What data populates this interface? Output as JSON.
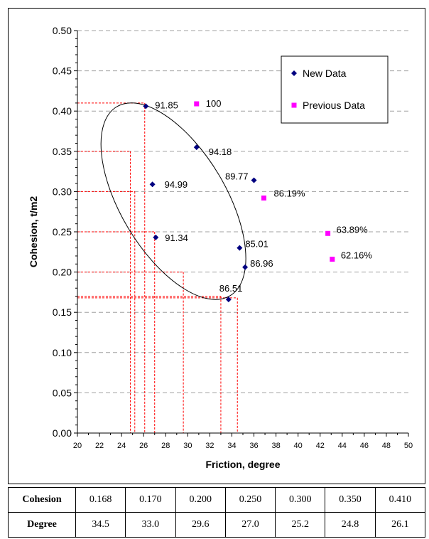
{
  "chart_data": {
    "type": "scatter",
    "xlabel": "Friction, degree",
    "ylabel": "Cohesion, t/m2",
    "xlim": [
      20,
      50
    ],
    "ylim": [
      0,
      0.5
    ],
    "x_ticks": [
      "20",
      "22",
      "24",
      "26",
      "28",
      "30",
      "32",
      "34",
      "36",
      "38",
      "40",
      "42",
      "44",
      "46",
      "48",
      "50"
    ],
    "y_ticks": [
      "0.00",
      "0.05",
      "0.10",
      "0.15",
      "0.20",
      "0.25",
      "0.30",
      "0.35",
      "0.40",
      "0.45",
      "0.50"
    ],
    "grid": "horizontal dashed",
    "legend_position": "top-right",
    "series": [
      {
        "name": "New Data",
        "color": "#000080",
        "marker": "diamond",
        "points": [
          {
            "x": 26.2,
            "y": 0.406,
            "label": "91.85"
          },
          {
            "x": 30.8,
            "y": 0.355,
            "label": "94.18"
          },
          {
            "x": 26.8,
            "y": 0.309,
            "label": "94.99"
          },
          {
            "x": 36.0,
            "y": 0.314,
            "label": "89.77"
          },
          {
            "x": 27.1,
            "y": 0.243,
            "label": "91.34"
          },
          {
            "x": 34.7,
            "y": 0.23,
            "label": "85.01"
          },
          {
            "x": 35.2,
            "y": 0.206,
            "label": "86.96"
          },
          {
            "x": 33.7,
            "y": 0.166,
            "label": "86.51"
          }
        ]
      },
      {
        "name": "Previous Data",
        "color": "#ff00ff",
        "marker": "square",
        "points": [
          {
            "x": 30.8,
            "y": 0.409,
            "label": "100"
          },
          {
            "x": 36.9,
            "y": 0.292,
            "label": "86.19%"
          },
          {
            "x": 42.7,
            "y": 0.248,
            "label": "63.89%"
          },
          {
            "x": 43.1,
            "y": 0.216,
            "label": "62.16%"
          }
        ]
      }
    ],
    "reference_lines": [
      {
        "cohesion": 0.168,
        "degree": 34.5
      },
      {
        "cohesion": 0.17,
        "degree": 33.0
      },
      {
        "cohesion": 0.2,
        "degree": 29.6
      },
      {
        "cohesion": 0.25,
        "degree": 27.0
      },
      {
        "cohesion": 0.3,
        "degree": 25.2
      },
      {
        "cohesion": 0.35,
        "degree": 24.8
      },
      {
        "cohesion": 0.41,
        "degree": 26.1
      }
    ],
    "ellipse": {
      "center": [
        28.7,
        0.288
      ],
      "tilt_deg": -30
    }
  },
  "table": {
    "rows": [
      {
        "label": "Cohesion",
        "values": [
          "0.168",
          "0.170",
          "0.200",
          "0.250",
          "0.300",
          "0.350",
          "0.410"
        ]
      },
      {
        "label": "Degree",
        "values": [
          "34.5",
          "33.0",
          "29.6",
          "27.0",
          "25.2",
          "24.8",
          "26.1"
        ]
      }
    ]
  }
}
